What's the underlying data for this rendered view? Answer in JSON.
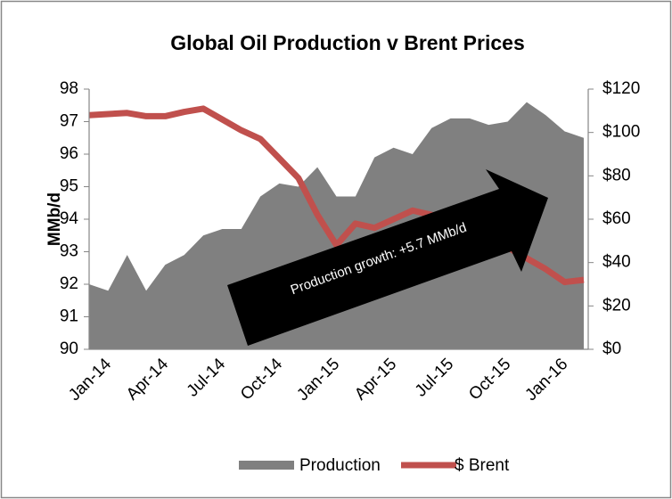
{
  "chart_data": {
    "type": "area-line",
    "title": "Global Oil Production v Brent Prices",
    "y_label": "MMb/d",
    "annotation": "Production growth: +5.7 MMb/d",
    "categories": [
      "Jan-14",
      null,
      null,
      "Apr-14",
      null,
      null,
      "Jul-14",
      null,
      null,
      "Oct-14",
      null,
      null,
      "Jan-15",
      null,
      null,
      "Apr-15",
      null,
      null,
      "Jul-15",
      null,
      null,
      "Oct-15",
      null,
      null,
      "Jan-16",
      null,
      null
    ],
    "series": [
      {
        "name": "Production",
        "color": "#808080",
        "kind": "area",
        "values": [
          92.0,
          91.8,
          92.9,
          91.8,
          92.6,
          92.9,
          93.5,
          93.7,
          93.7,
          94.7,
          95.1,
          95.0,
          95.6,
          94.7,
          94.7,
          95.9,
          96.2,
          96.0,
          96.8,
          97.1,
          97.1,
          96.9,
          97.0,
          97.6,
          97.2,
          96.7,
          96.5
        ]
      },
      {
        "name": "$ Brent",
        "color": "#c0504d",
        "kind": "line",
        "axis": "y2",
        "values": [
          108,
          108.5,
          109,
          107.5,
          107.5,
          109.5,
          111,
          106,
          101,
          97,
          88,
          79,
          62,
          48,
          58,
          56,
          60,
          64,
          62,
          58,
          54,
          51,
          47,
          42,
          37,
          31,
          32
        ]
      }
    ],
    "ylim": [
      90,
      98
    ],
    "yticks": [
      90,
      91,
      92,
      93,
      94,
      95,
      96,
      97,
      98
    ],
    "y2lim": [
      0,
      120
    ],
    "y2ticks": [
      {
        "value": 0,
        "label": "$0"
      },
      {
        "value": 20,
        "label": "$20"
      },
      {
        "value": 40,
        "label": "$40"
      },
      {
        "value": 60,
        "label": "$60"
      },
      {
        "value": 80,
        "label": "$80"
      },
      {
        "value": 100,
        "label": "$100"
      },
      {
        "value": 120,
        "label": "$120"
      }
    ],
    "grid": false,
    "legend": "bottom"
  }
}
